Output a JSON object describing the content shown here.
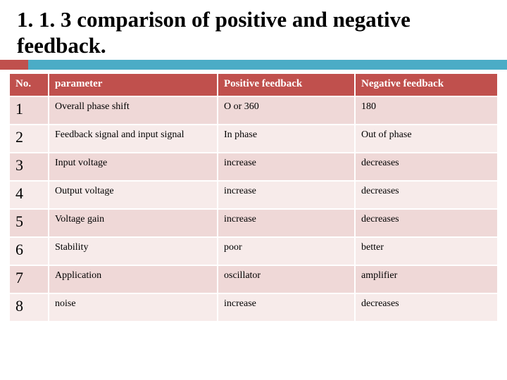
{
  "title": "1. 1. 3 comparison of positive and negative feedback.",
  "accent": {
    "red": "#c0504d",
    "teal": "#4bacc6"
  },
  "table": {
    "header": {
      "no": "No.",
      "param": "parameter",
      "pos": "Positive feedback",
      "neg": "Negative feedback"
    },
    "row_colors": {
      "odd": "#efd8d7",
      "even": "#f7ebea"
    },
    "header_bg": "#c0504d",
    "header_fg": "#ffffff",
    "no_fontsize": 22,
    "cell_fontsize": 14,
    "header_fontsize": 15,
    "rows": [
      {
        "no": "1",
        "param": "Overall phase shift",
        "pos": "O or 360",
        "neg": "180"
      },
      {
        "no": "2",
        "param": "Feedback signal and input signal",
        "pos": "In phase",
        "neg": "Out of phase"
      },
      {
        "no": "3",
        "param": "Input voltage",
        "pos": "increase",
        "neg": "decreases"
      },
      {
        "no": "4",
        "param": "Output voltage",
        "pos": "increase",
        "neg": "decreases"
      },
      {
        "no": "5",
        "param": "Voltage gain",
        "pos": "increase",
        "neg": "decreases"
      },
      {
        "no": "6",
        "param": "Stability",
        "pos": "poor",
        "neg": "better"
      },
      {
        "no": "7",
        "param": "Application",
        "pos": "oscillator",
        "neg": "amplifier"
      },
      {
        "no": "8",
        "param": "noise",
        "pos": "increase",
        "neg": "decreases"
      }
    ]
  }
}
